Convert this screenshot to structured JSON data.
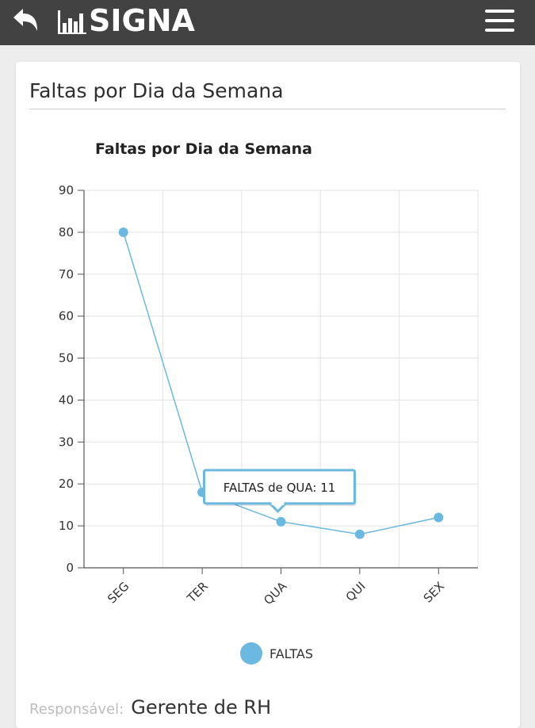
{
  "header": {
    "brand": "SIGNA",
    "back_icon": "back-arrow-icon",
    "logo_icon": "bar-chart-logo-icon",
    "menu_icon": "hamburger-menu-icon",
    "background_color": "#424242"
  },
  "card": {
    "title": "Faltas por Dia da Semana"
  },
  "chart_data": {
    "type": "line",
    "title": "Faltas por Dia da Semana",
    "categories": [
      "SEG",
      "TER",
      "QUA",
      "QUI",
      "SEX"
    ],
    "series": [
      {
        "name": "FALTAS",
        "values": [
          80,
          18,
          11,
          8,
          12
        ],
        "color": "#6bb8e0"
      }
    ],
    "ylim": [
      0,
      90
    ],
    "yticks": [
      0,
      10,
      20,
      30,
      40,
      50,
      60,
      70,
      80,
      90
    ],
    "grid": true,
    "legend": "bottom",
    "tooltip": {
      "text": "FALTAS de QUA: 11",
      "category": "QUA"
    }
  },
  "footer": {
    "label": "Responsável:",
    "value": "Gerente de RH"
  }
}
